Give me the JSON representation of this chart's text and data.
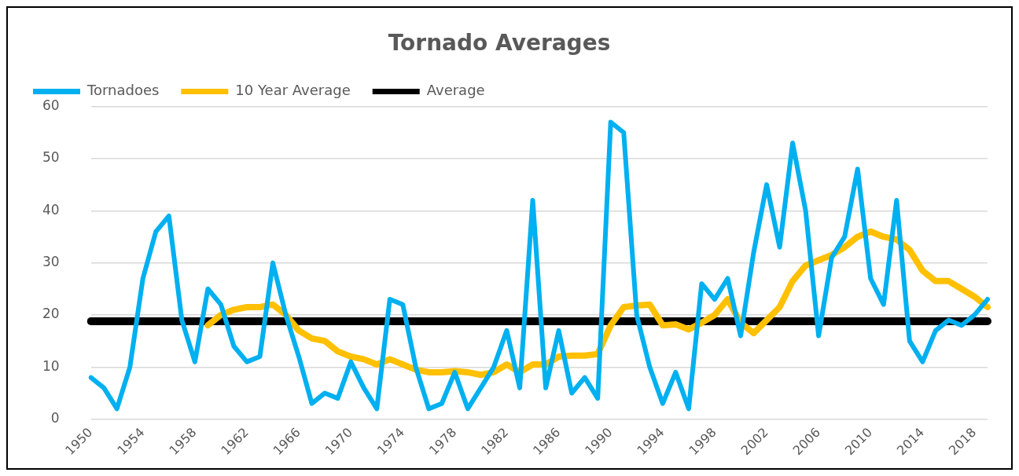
{
  "chart_data": {
    "type": "line",
    "title": "Tornado Averages",
    "categories": [
      "1950",
      null,
      null,
      null,
      "1954",
      null,
      null,
      null,
      "1958",
      null,
      null,
      null,
      "1962",
      null,
      null,
      null,
      "1966",
      null,
      null,
      null,
      "1970",
      null,
      null,
      null,
      "1974",
      null,
      null,
      null,
      "1978",
      null,
      null,
      null,
      "1982",
      null,
      null,
      null,
      "1986",
      null,
      null,
      null,
      "1990",
      null,
      null,
      null,
      "1994",
      null,
      null,
      null,
      "1998",
      null,
      null,
      null,
      "2002",
      null,
      null,
      null,
      "2006",
      null,
      null,
      null,
      "2010",
      null,
      null,
      null,
      "2014",
      null,
      null,
      null,
      "2018",
      null
    ],
    "series": [
      {
        "name": "Tornadoes",
        "color": "#00b0f0",
        "values": [
          8,
          6,
          2,
          10,
          27,
          36,
          39,
          19,
          11,
          25,
          22,
          14,
          11,
          12,
          30,
          20,
          12,
          3,
          5,
          4,
          11,
          6,
          2,
          23,
          22,
          10,
          2,
          3,
          9,
          2,
          6,
          10,
          17,
          6,
          42,
          6,
          17,
          5,
          8,
          4,
          57,
          55,
          20,
          10,
          3,
          9,
          2,
          26,
          23,
          27,
          16,
          32,
          45,
          33,
          53,
          40,
          16,
          31,
          35,
          48,
          27,
          22,
          42,
          15,
          11,
          17,
          19,
          18,
          20,
          23
        ]
      },
      {
        "name": "10 Year Average",
        "color": "#ffc000",
        "values": [
          null,
          null,
          null,
          null,
          null,
          null,
          null,
          null,
          null,
          18,
          20,
          21,
          21.5,
          21.5,
          22,
          20,
          17,
          15.5,
          15,
          13,
          12,
          11.5,
          10.5,
          11.5,
          10.5,
          9.5,
          9,
          9,
          9.2,
          9,
          8.5,
          9,
          10.5,
          9,
          10.5,
          10.5,
          12,
          12.2,
          12.2,
          12.5,
          18,
          21.5,
          21.8,
          22,
          18,
          18.2,
          17.2,
          18.5,
          20,
          23,
          18.5,
          16.5,
          19,
          21.5,
          26.5,
          29.5,
          30.5,
          31.5,
          33,
          35,
          36,
          35,
          34.5,
          32.5,
          28.5,
          26.5,
          26.5,
          25,
          23.5,
          21.5
        ]
      },
      {
        "name": "Average",
        "color": "#000000",
        "values": [
          18.8,
          18.8,
          18.8,
          18.8,
          18.8,
          18.8,
          18.8,
          18.8,
          18.8,
          18.8,
          18.8,
          18.8,
          18.8,
          18.8,
          18.8,
          18.8,
          18.8,
          18.8,
          18.8,
          18.8,
          18.8,
          18.8,
          18.8,
          18.8,
          18.8,
          18.8,
          18.8,
          18.8,
          18.8,
          18.8,
          18.8,
          18.8,
          18.8,
          18.8,
          18.8,
          18.8,
          18.8,
          18.8,
          18.8,
          18.8,
          18.8,
          18.8,
          18.8,
          18.8,
          18.8,
          18.8,
          18.8,
          18.8,
          18.8,
          18.8,
          18.8,
          18.8,
          18.8,
          18.8,
          18.8,
          18.8,
          18.8,
          18.8,
          18.8,
          18.8,
          18.8,
          18.8,
          18.8,
          18.8,
          18.8,
          18.8,
          18.8,
          18.8,
          18.8,
          18.8
        ]
      }
    ],
    "ylim": [
      0,
      60
    ],
    "yticks": [
      0,
      10,
      20,
      30,
      40,
      50,
      60
    ],
    "grid": "y",
    "legend": "top left",
    "marker": "none",
    "line_style": "solid"
  }
}
